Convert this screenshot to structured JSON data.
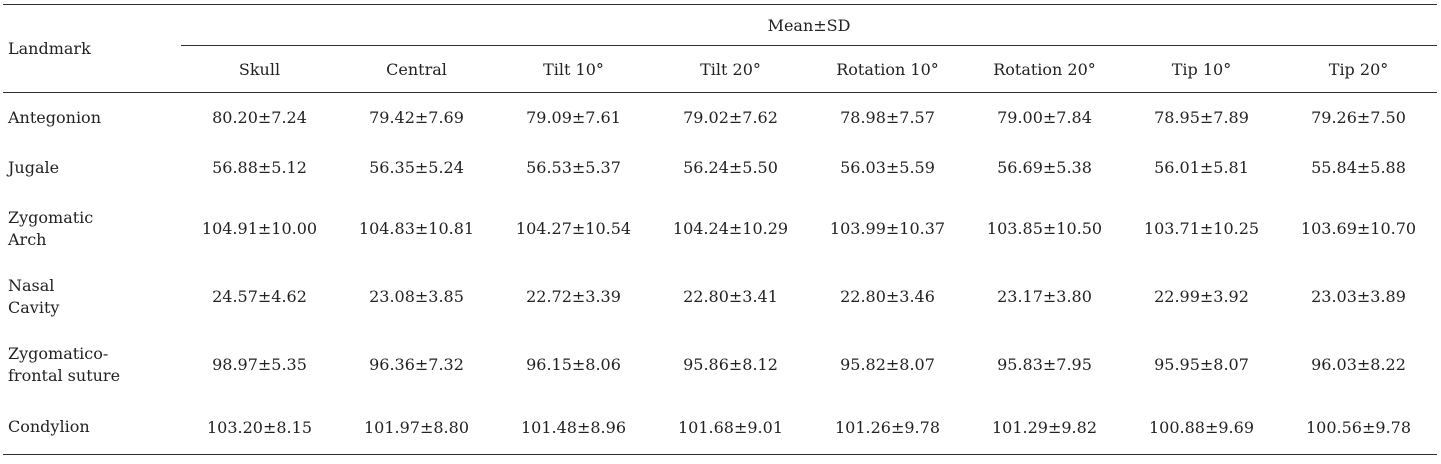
{
  "table": {
    "header": {
      "landmark": "Landmark",
      "group": "Mean±SD",
      "columns": [
        "Skull",
        "Central",
        "Tilt 10°",
        "Tilt 20°",
        "Rotation 10°",
        "Rotation 20°",
        "Tip 10°",
        "Tip 20°"
      ]
    },
    "rows": [
      {
        "label": [
          "Antegonion"
        ],
        "cells": [
          "80.20±7.24",
          "79.42±7.69",
          "79.09±7.61",
          "79.02±7.62",
          "78.98±7.57",
          "79.00±7.84",
          "78.95±7.89",
          "79.26±7.50"
        ]
      },
      {
        "label": [
          "Jugale"
        ],
        "cells": [
          "56.88±5.12",
          "56.35±5.24",
          "56.53±5.37",
          "56.24±5.50",
          "56.03±5.59",
          "56.69±5.38",
          "56.01±5.81",
          "55.84±5.88"
        ]
      },
      {
        "label": [
          "Zygomatic",
          "Arch"
        ],
        "cells": [
          "104.91±10.00",
          "104.83±10.81",
          "104.27±10.54",
          "104.24±10.29",
          "103.99±10.37",
          "103.85±10.50",
          "103.71±10.25",
          "103.69±10.70"
        ]
      },
      {
        "label": [
          "Nasal",
          "Cavity"
        ],
        "cells": [
          "24.57±4.62",
          "23.08±3.85",
          "22.72±3.39",
          "22.80±3.41",
          "22.80±3.46",
          "23.17±3.80",
          "22.99±3.92",
          "23.03±3.89"
        ]
      },
      {
        "label": [
          "Zygomatico-",
          "frontal suture"
        ],
        "cells": [
          "98.97±5.35",
          "96.36±7.32",
          "96.15±8.06",
          "95.86±8.12",
          "95.82±8.07",
          "95.83±7.95",
          "95.95±8.07",
          "96.03±8.22"
        ]
      },
      {
        "label": [
          "Condylion"
        ],
        "cells": [
          "103.20±8.15",
          "101.97±8.80",
          "101.48±8.96",
          "101.68±9.01",
          "101.26±9.78",
          "101.29±9.82",
          "100.88±9.69",
          "100.56±9.78"
        ]
      }
    ]
  }
}
